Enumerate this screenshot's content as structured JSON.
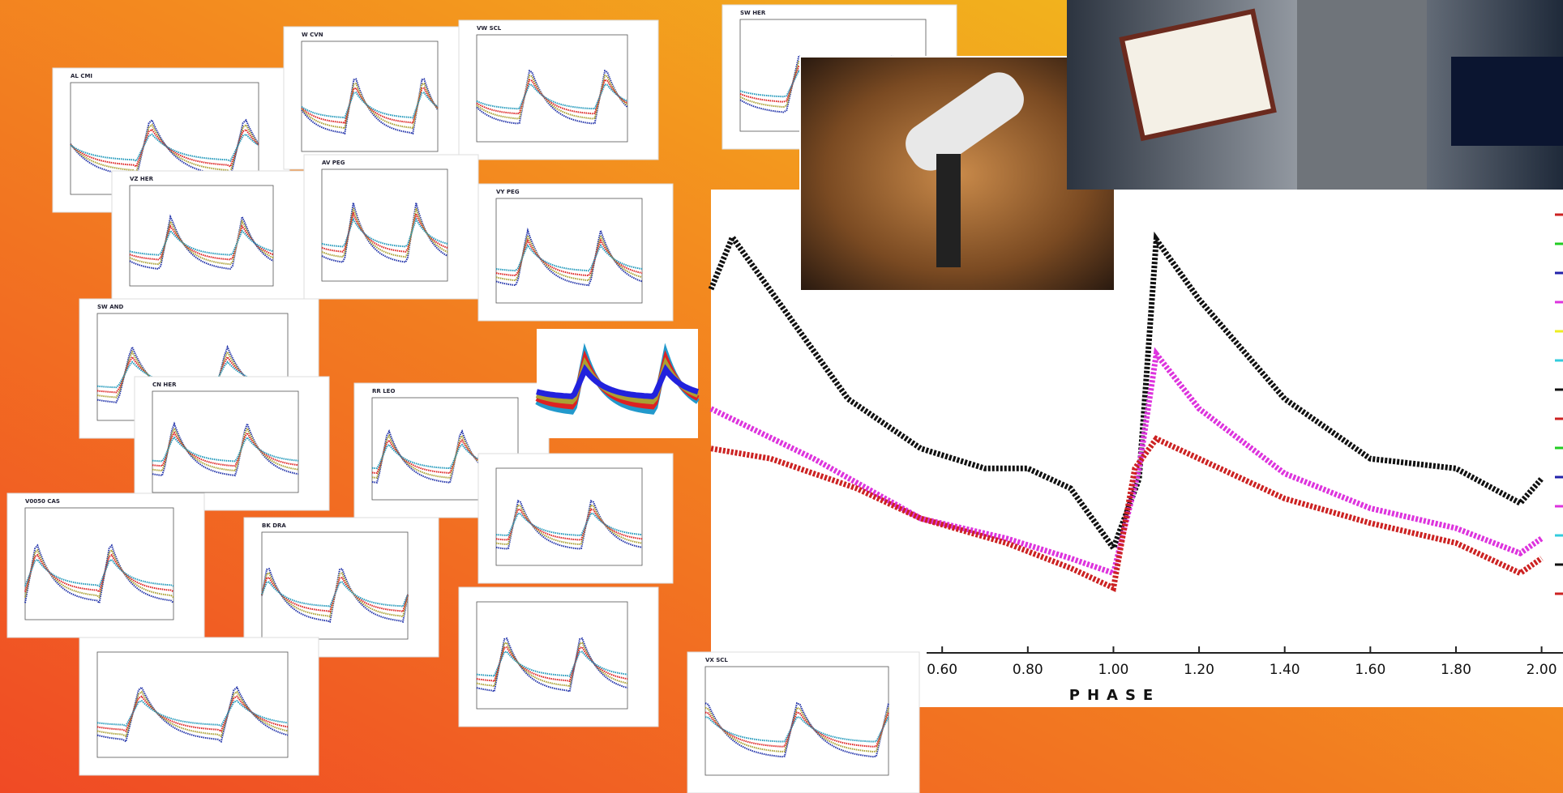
{
  "panels": [
    {
      "title": "AL CMI"
    },
    {
      "title": "W CVN"
    },
    {
      "title": "VW SCL"
    },
    {
      "title": "SW HER"
    },
    {
      "title": "VZ HER"
    },
    {
      "title": "AV PEG"
    },
    {
      "title": "VY PEG"
    },
    {
      "title": "SW AND"
    },
    {
      "title": "CN HER"
    },
    {
      "title": "RR LEO"
    },
    {
      "title": "V0050 CAS"
    },
    {
      "title": "BK DRA"
    },
    {
      "title": "VX SCL"
    }
  ],
  "chart_data": {
    "type": "line",
    "xlabel": "PHASE",
    "xlim": [
      0.06,
      2.05
    ],
    "ylim": [
      0,
      100
    ],
    "xticks": [
      {
        "value": 0.6,
        "label": "0.60"
      },
      {
        "value": 0.8,
        "label": "0.80"
      },
      {
        "value": 1.0,
        "label": "1.00"
      },
      {
        "value": 1.2,
        "label": "1.20"
      },
      {
        "value": 1.4,
        "label": "1.40"
      },
      {
        "value": 1.6,
        "label": "1.60"
      },
      {
        "value": 1.8,
        "label": "1.80"
      },
      {
        "value": 2.0,
        "label": "2.00"
      }
    ],
    "series": [
      {
        "color": "#111111",
        "x": [
          0.06,
          0.11,
          0.38,
          0.55,
          0.7,
          0.8,
          0.9,
          1.0,
          1.06,
          1.1,
          1.2,
          1.4,
          1.6,
          1.8,
          1.95,
          2.0
        ],
        "values": [
          78.5,
          89.7,
          54.8,
          44.1,
          39.8,
          39.8,
          35.5,
          22.6,
          37.6,
          89.2,
          76.3,
          54.8,
          41.9,
          39.8,
          32.3,
          37.6
        ]
      },
      {
        "color": "#dd33dd",
        "x": [
          0.06,
          0.3,
          0.55,
          0.75,
          0.9,
          1.0,
          1.06,
          1.1,
          1.2,
          1.4,
          1.6,
          1.8,
          1.95,
          2.0
        ],
        "values": [
          52.7,
          41.9,
          29.0,
          24.7,
          20.4,
          17.2,
          39.8,
          64.5,
          52.7,
          38.7,
          31.2,
          26.9,
          21.5,
          24.7
        ]
      },
      {
        "color": "#cc2222",
        "x": [
          0.06,
          0.2,
          0.4,
          0.55,
          0.75,
          0.9,
          1.0,
          1.05,
          1.1,
          1.2,
          1.4,
          1.6,
          1.8,
          1.95,
          2.0
        ],
        "values": [
          44.1,
          41.9,
          35.5,
          29.0,
          23.7,
          18.3,
          14.0,
          39.8,
          46.2,
          41.9,
          33.3,
          28.0,
          23.7,
          17.2,
          20.4
        ]
      }
    ]
  }
}
